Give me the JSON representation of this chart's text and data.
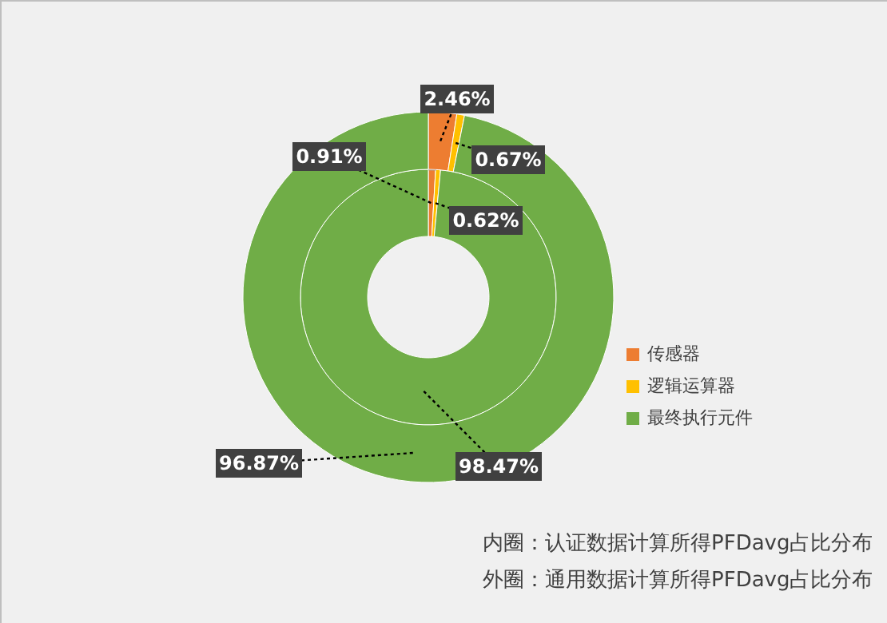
{
  "chart_data": {
    "type": "donut",
    "categories": [
      "传感器",
      "逻辑运算器",
      "最终执行元件"
    ],
    "colors": [
      "#ed7d31",
      "#ffc000",
      "#70ad47"
    ],
    "series": [
      {
        "values": [
          0.91,
          0.62,
          98.47
        ],
        "value_labels": [
          "0.91%",
          "0.62%",
          "98.47%"
        ]
      },
      {
        "values": [
          2.46,
          0.67,
          96.87
        ],
        "value_labels": [
          "2.46%",
          "0.67%",
          "96.87%"
        ]
      }
    ],
    "legend": "right",
    "annotations": [
      "内圈：认证数据计算所得PFDavg占比分布",
      "外圈：通用数据计算所得PFDavg占比分布"
    ]
  }
}
